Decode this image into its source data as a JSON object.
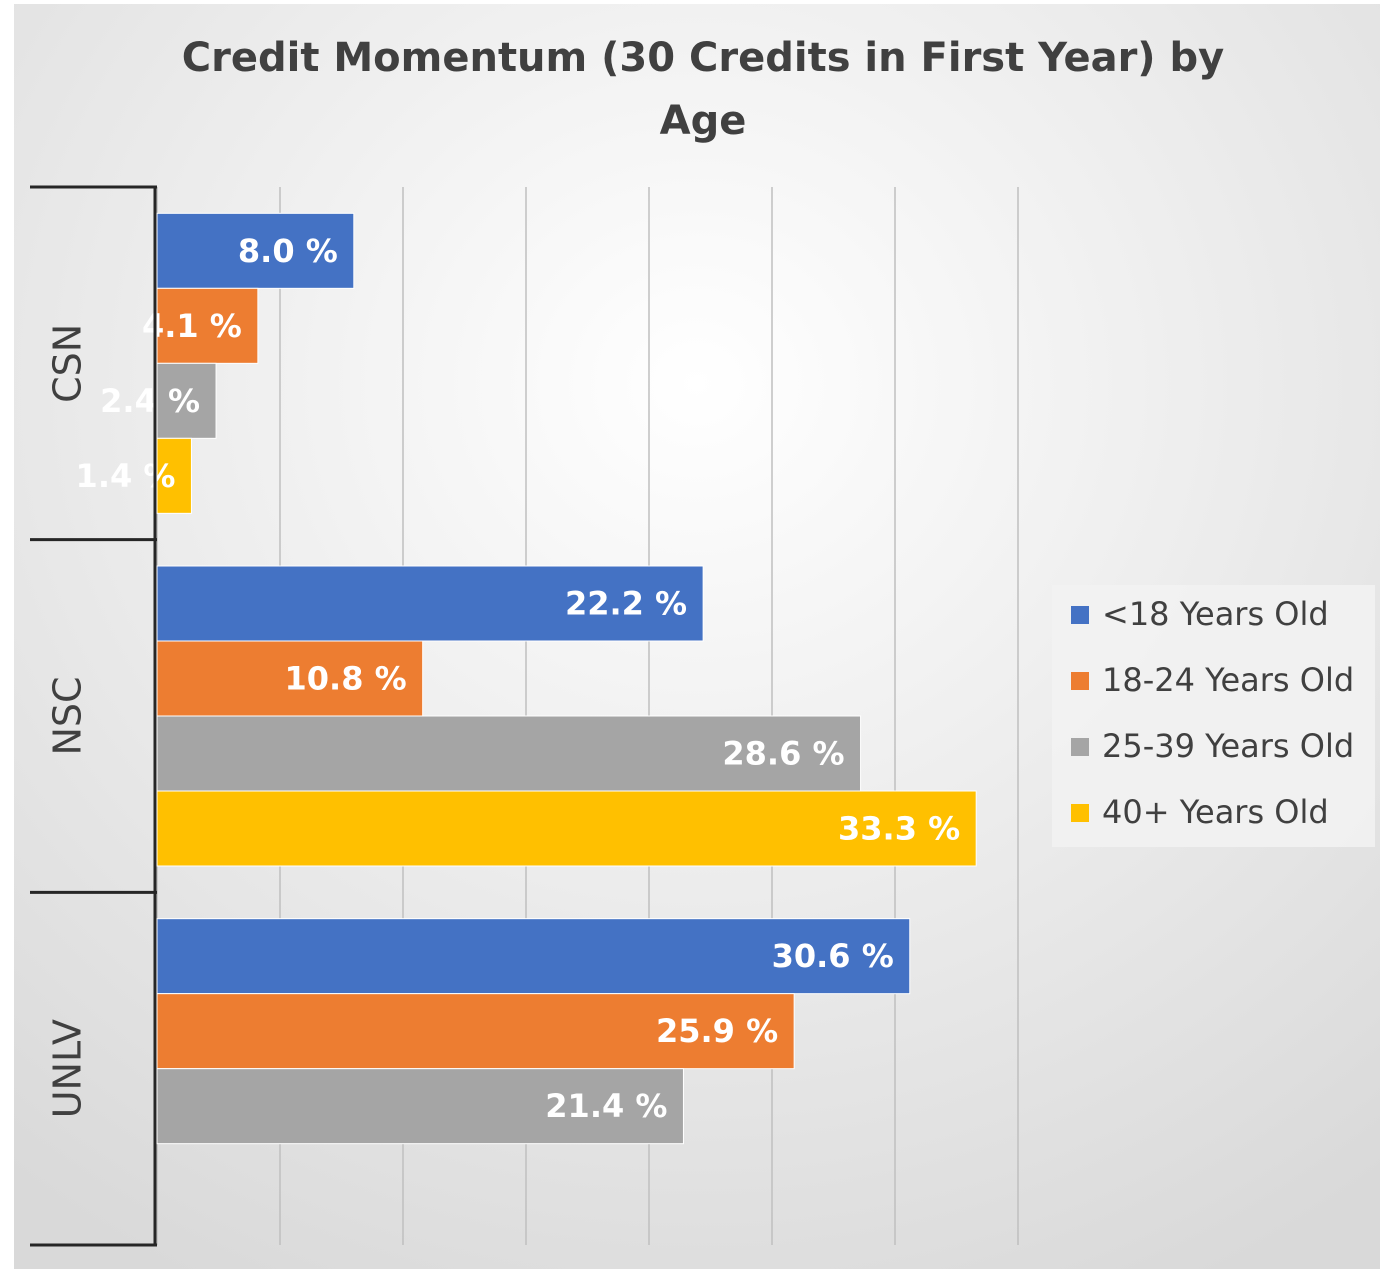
{
  "chart_data": {
    "type": "bar",
    "orientation": "horizontal",
    "title": "Credit Momentum (30 Credits in First Year) by Age",
    "categories": [
      "CSN",
      "NSC",
      "UNLV"
    ],
    "series": [
      {
        "name": "<18 Years Old",
        "color": "#4472c4",
        "values": [
          8.0,
          22.2,
          30.6
        ],
        "value_labels": [
          "8.0 %",
          "22.2 %",
          "30.6 %"
        ]
      },
      {
        "name": "18-24 Years Old",
        "color": "#ed7d31",
        "values": [
          4.1,
          10.8,
          25.9
        ],
        "value_labels": [
          "4.1 %",
          "10.8 %",
          "25.9 %"
        ]
      },
      {
        "name": "25-39 Years Old",
        "color": "#a5a5a5",
        "values": [
          2.4,
          28.6,
          21.4
        ],
        "value_labels": [
          "2.4 %",
          "28.6 %",
          "21.4 %"
        ]
      },
      {
        "name": "40+ Years Old",
        "color": "#ffc000",
        "values": [
          1.4,
          33.3,
          null
        ],
        "value_labels": [
          "1.4 %",
          "33.3 %",
          null
        ]
      }
    ],
    "xlim": [
      0,
      35
    ],
    "xticks": [
      0,
      5,
      10,
      15,
      20,
      25,
      30,
      35
    ],
    "grid": true,
    "legend": "right"
  }
}
